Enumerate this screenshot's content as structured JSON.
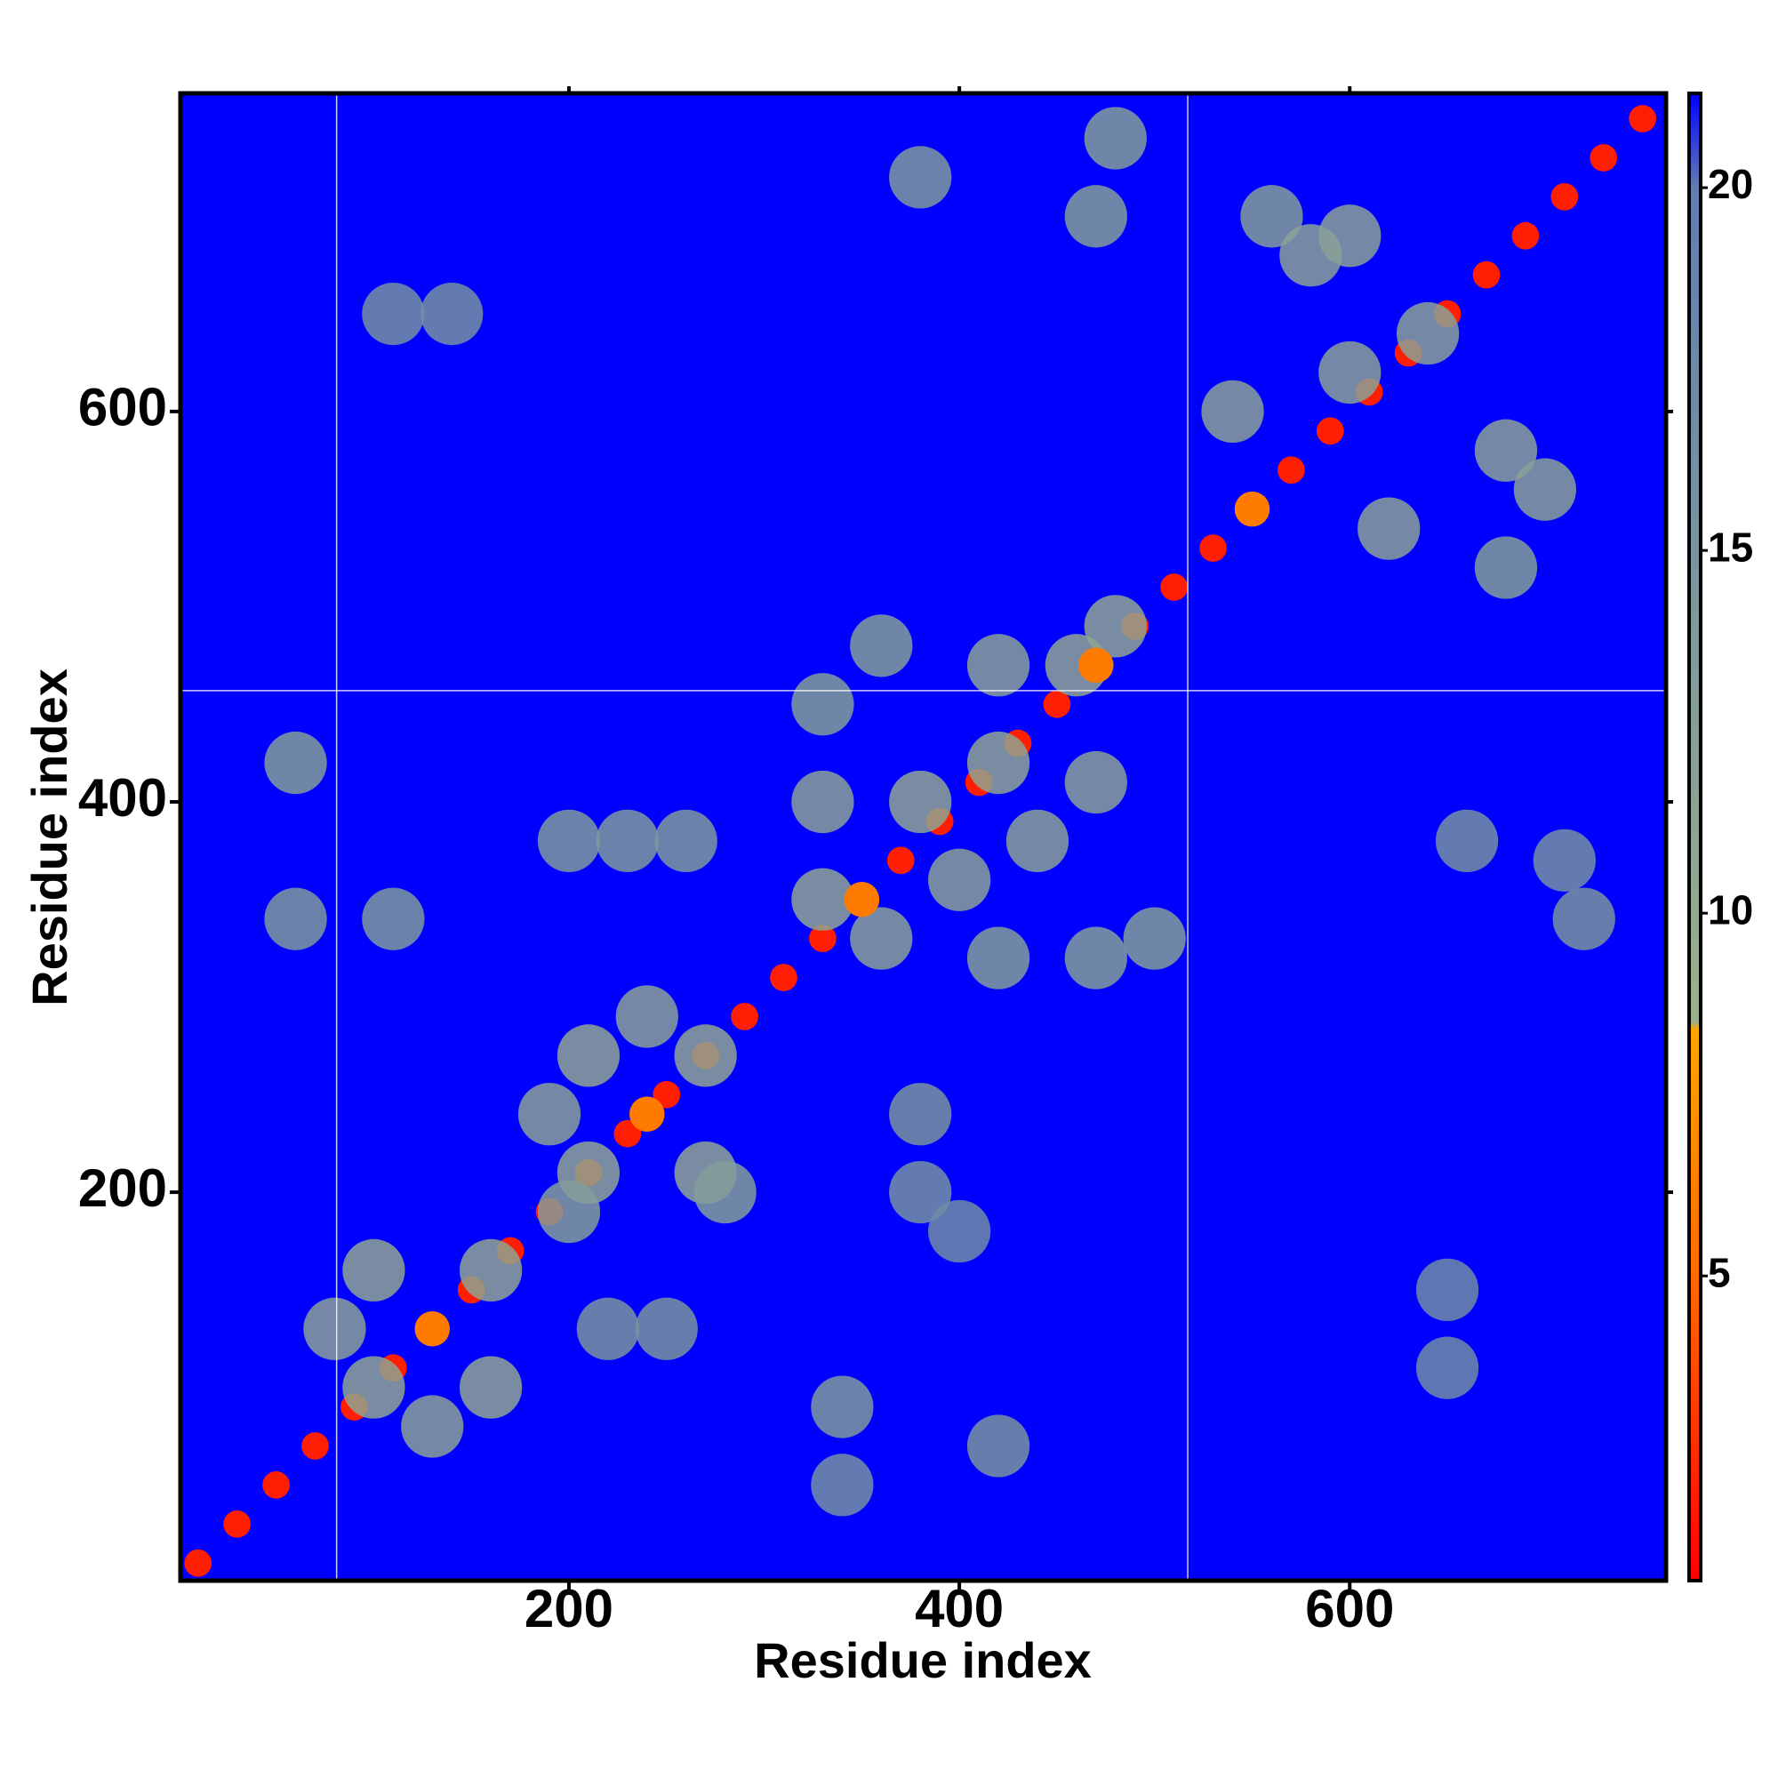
{
  "chart_data": {
    "type": "heatmap",
    "xlabel": "Residue index",
    "ylabel": "Residue index",
    "xlim": [
      1,
      762
    ],
    "ylim": [
      1,
      763
    ],
    "xticks": [
      200,
      400,
      600
    ],
    "yticks": [
      200,
      400,
      600
    ],
    "clim": [
      0.8,
      21.3
    ],
    "cticks": [
      5,
      10,
      15,
      20
    ],
    "colorscale": [
      [
        0.8,
        "#ff0000"
      ],
      [
        5,
        "#ff6a00"
      ],
      [
        8.4,
        "#ffa500"
      ],
      [
        8.5,
        "#9bb08a"
      ],
      [
        20,
        "#5f7fb0"
      ],
      [
        21.3,
        "#0000ff"
      ]
    ],
    "background": "#0000ff",
    "vlines": [
      81,
      517
    ],
    "hlines": [
      457
    ],
    "series": [
      {
        "x": [
          10,
          30,
          50,
          70,
          90,
          110,
          130,
          150,
          170,
          190,
          210,
          230,
          250,
          270,
          290,
          310,
          330,
          350,
          370,
          390,
          410,
          430,
          450,
          470,
          490,
          510,
          530,
          550,
          570,
          590,
          610,
          630,
          650,
          670,
          690,
          710,
          730,
          750
        ],
        "y": [
          10,
          30,
          50,
          70,
          90,
          110,
          130,
          150,
          170,
          190,
          210,
          230,
          250,
          270,
          290,
          310,
          330,
          350,
          370,
          390,
          410,
          430,
          450,
          470,
          490,
          510,
          530,
          550,
          570,
          590,
          610,
          630,
          650,
          670,
          690,
          710,
          730,
          750
        ],
        "values": [
          2,
          2,
          2,
          2,
          2,
          2,
          2,
          2,
          2,
          2,
          2,
          2,
          2,
          2,
          2,
          2,
          2,
          2,
          2,
          2,
          2,
          2,
          2,
          2,
          2,
          2,
          2,
          2,
          2,
          2,
          2,
          2,
          2,
          2,
          2,
          2,
          2,
          2
        ]
      },
      {
        "x": [
          100,
          160,
          100,
          160,
          130,
          80,
          210,
          270,
          210,
          270,
          190,
          240,
          280,
          200,
          330,
          380,
          420,
          460,
          480,
          400,
          360,
          440,
          470,
          330,
          360,
          330,
          420,
          470,
          500,
          420,
          540,
          600,
          640,
          680,
          600,
          560,
          470,
          480,
          380,
          620,
          700,
          680,
          580,
          60,
          60,
          110,
          200,
          230,
          260,
          220,
          250,
          340,
          420,
          340,
          380,
          380,
          650,
          650,
          720,
          660,
          710,
          110,
          140,
          400,
          130,
          240,
          350,
          470,
          550
        ],
        "y": [
          100,
          100,
          160,
          160,
          80,
          130,
          210,
          270,
          270,
          210,
          240,
          290,
          200,
          190,
          350,
          400,
          420,
          470,
          490,
          360,
          330,
          380,
          410,
          450,
          480,
          400,
          320,
          320,
          330,
          470,
          600,
          620,
          640,
          580,
          690,
          700,
          700,
          740,
          720,
          540,
          560,
          520,
          680,
          420,
          340,
          340,
          380,
          380,
          380,
          130,
          130,
          90,
          70,
          50,
          240,
          200,
          150,
          110,
          340,
          380,
          370,
          650,
          650,
          180,
          130,
          240,
          350,
          470,
          550
        ],
        "values": [
          11,
          11,
          11,
          11,
          12,
          12,
          11,
          11,
          11,
          11,
          12,
          12,
          13,
          13,
          11,
          11,
          11,
          11,
          11,
          12,
          12,
          12,
          12,
          13,
          13,
          12,
          13,
          13,
          13,
          12,
          12,
          12,
          12,
          12,
          12,
          13,
          13,
          13,
          14,
          12,
          12,
          13,
          12,
          13,
          14,
          14,
          14,
          14,
          14,
          15,
          15,
          14,
          15,
          16,
          15,
          16,
          17,
          17,
          15,
          16,
          16,
          16,
          16,
          17,
          6,
          6,
          6,
          6,
          6
        ]
      }
    ]
  }
}
